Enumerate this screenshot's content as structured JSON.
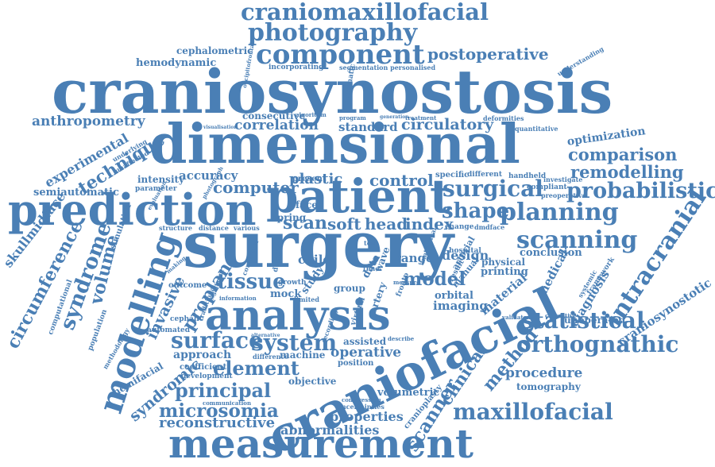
{
  "accent_color": "#4a7fb5",
  "words": {
    "craniomaxillofacial": "craniomaxillofacial",
    "photography": "photography",
    "component": "component",
    "postoperative": "postoperative",
    "cephalometric": "cephalometric",
    "hemodynamic": "hemodynamic",
    "incorporating": "incorporating",
    "segmentation": "segmentation personalised",
    "craniosynostosis": "craniosynostosis",
    "anthropometry": "anthropometry",
    "consecutive": "consecutive",
    "correlation": "correlation",
    "standard": "standard",
    "circulatory": "circulatory",
    "optimization": "optimization",
    "dimensional": "dimensional",
    "experimental": "experimental",
    "technique": "technique",
    "comparison": "comparison",
    "remodelling": "remodelling",
    "semiautomatic": "semiautomatic",
    "intensity": "intensity",
    "accuracy": "accuracy",
    "computer": "computer",
    "plastic": "plastic",
    "control": "control",
    "surgical": "surgical",
    "probabilistic": "probabilistic",
    "patient": "patient",
    "prediction": "prediction",
    "scan": "scan",
    "soft": "soft",
    "head": "head",
    "index": "index",
    "shape": "shape",
    "planning": "planning",
    "skullmidface": "skullmidface",
    "surgery": "surgery",
    "scanning": "scanning",
    "volume": "volume",
    "syndrome": "syndrome",
    "circumference": "circumference",
    "intracranial": "intracranial",
    "modelling": "modelling",
    "tissue": "tissue",
    "child": "child",
    "model": "model",
    "design": "design",
    "conclusion": "conclusion",
    "diagnosis": "diagnosis",
    "craniosynostotic": "craniosynostotic",
    "invasive": "invasive",
    "proplan": "proplan",
    "analysis": "analysis",
    "imaging": "imaging",
    "statistical": "statistical",
    "surface": "surface",
    "system": "system",
    "orthognathic": "orthognathic",
    "approach": "approach",
    "element": "element",
    "operative": "operative",
    "craniofacial": "craniofacial",
    "method": "method",
    "procedure": "procedure",
    "syndromic": "syndromic",
    "principal": "principal",
    "clinical": "clinical",
    "tomography": "tomography",
    "microsomia": "microsomia",
    "scanner": "scanner",
    "maxillofacial": "maxillofacial",
    "reconstructive": "reconstructive",
    "properties": "properties",
    "abnormalities": "abnormalities",
    "measurement": "measurement",
    "hemifacial": "hemifacial",
    "volumetric": "volumetric",
    "objective": "objective",
    "machine": "machine",
    "group": "group",
    "range": "range",
    "face": "face",
    "spring": "spring",
    "data": "data",
    "orbital": "orbital",
    "change": "change",
    "dmdface": "dmdface",
    "unoperated": "unoperated",
    "material": "material",
    "medical": "medical",
    "printing": "printing",
    "physical": "physical",
    "hospital": "hospital",
    "specific": "specific",
    "different": "different",
    "handheld": "handheld",
    "investigate": "investigate",
    "compliant": "compliant",
    "preoperative": "preoperative",
    "simulation": "simulation",
    "parameter": "parameter",
    "underlying": "underlying",
    "unaffected": "unaffected",
    "present": "present",
    "program": "program",
    "treatment": "treatment",
    "deformities": "deformities",
    "quantitative": "quantitative",
    "structure": "structure",
    "distance": "distance",
    "various": "various",
    "outcome": "outcome",
    "cephalic": "cephalic",
    "automated": "automated",
    "coefficient": "coefficient",
    "development": "development",
    "difference": "difference",
    "position": "position",
    "assisted": "assisted",
    "describe": "describe",
    "communication": "communication",
    "virtual": "virtual",
    "growth": "growth",
    "mock": "mock",
    "study": "study",
    "limited": "limited",
    "validated": "validated",
    "corrective": "corrective",
    "framework": "framework",
    "population": "population",
    "computational": "computational",
    "methodology": "methodology",
    "manual": "manual",
    "arterial": "arterial",
    "artery": "artery",
    "result": "result",
    "wave": "wave",
    "tool": "tool",
    "time": "time",
    "fronto": "fronto",
    "correction": "correction",
    "significant": "significant",
    "traditional": "traditional",
    "information": "information",
    "alternative": "alternative",
    "cranioplasty": "cranioplasty",
    "uncertainties": "uncertainties",
    "compression": "compression",
    "measure": "measure",
    "anatomical": "anatomical",
    "decision": "decision",
    "automatic": "automatic",
    "algorithm": "algorithm",
    "generation": "generation",
    "understanding": "understanding",
    "visualisation": "visualisation",
    "occipitofrontal": "occipitofrontal",
    "recording": "recording",
    "making": "making",
    "systemic": "systemic",
    "evaluation": "evaluation",
    "photograph": "photograph"
  }
}
